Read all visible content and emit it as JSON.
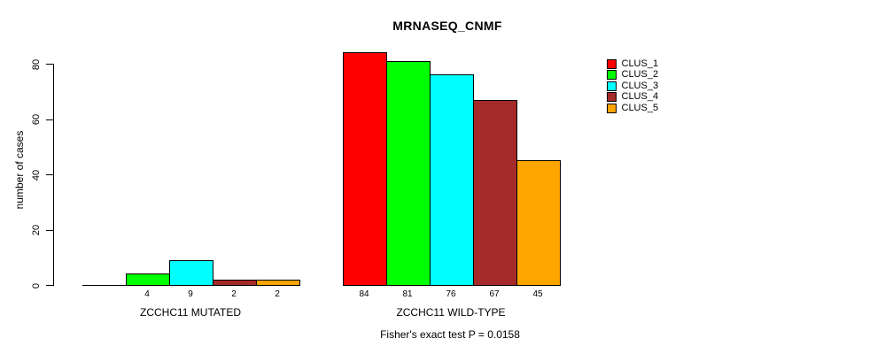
{
  "title": "MRNASEQ_CNMF",
  "y_axis": {
    "label": "number of cases",
    "tick_labels": [
      "0",
      "20",
      "40",
      "60",
      "80"
    ]
  },
  "footer": "Fisher's exact test P = 0.0158",
  "legend": {
    "items": [
      {
        "label": "CLUS_1",
        "color": "#FF0000"
      },
      {
        "label": "CLUS_2",
        "color": "#00FF00"
      },
      {
        "label": "CLUS_3",
        "color": "#00FFFF"
      },
      {
        "label": "CLUS_4",
        "color": "#A52A2A"
      },
      {
        "label": "CLUS_5",
        "color": "#FFA500"
      }
    ]
  },
  "chart_data": {
    "type": "bar",
    "title": "MRNASEQ_CNMF",
    "xlabel": "",
    "ylabel": "number of cases",
    "ylim": [
      0,
      85
    ],
    "yticks": [
      0,
      20,
      40,
      60,
      80
    ],
    "grid": false,
    "legend_position": "right",
    "series_names": [
      "CLUS_1",
      "CLUS_2",
      "CLUS_3",
      "CLUS_4",
      "CLUS_5"
    ],
    "series_colors": [
      "#FF0000",
      "#00FF00",
      "#00FFFF",
      "#A52A2A",
      "#FFA500"
    ],
    "groups": [
      {
        "label": "ZCCHC11 MUTATED",
        "values": [
          0,
          4,
          9,
          2,
          2
        ],
        "value_labels": [
          "",
          "4",
          "9",
          "2",
          "2"
        ]
      },
      {
        "label": "ZCCHC11 WILD-TYPE",
        "values": [
          84,
          81,
          76,
          67,
          45
        ],
        "value_labels": [
          "84",
          "81",
          "76",
          "67",
          "45"
        ]
      }
    ],
    "annotation": "Fisher's exact test P = 0.0158"
  }
}
